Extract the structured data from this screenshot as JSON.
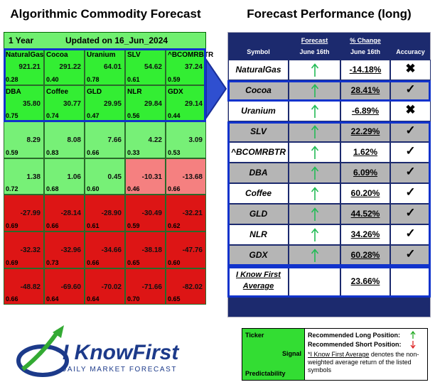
{
  "left": {
    "title": "Algorithmic Commodity Forecast",
    "period": "1 Year",
    "updated": "Updated on 16_Jun_2024",
    "rows": [
      [
        {
          "ticker": "NaturalGas",
          "signal": "921.21",
          "predictability": "0.28",
          "color": "#33ee33"
        },
        {
          "ticker": "Cocoa",
          "signal": "291.22",
          "predictability": "0.40",
          "color": "#33ee33"
        },
        {
          "ticker": "Uranium",
          "signal": "64.01",
          "predictability": "0.78",
          "color": "#33ee33"
        },
        {
          "ticker": "SLV",
          "signal": "54.62",
          "predictability": "0.61",
          "color": "#33ee33"
        },
        {
          "ticker": "^BCOMRBTR",
          "signal": "37.24",
          "predictability": "0.59",
          "color": "#33ee33"
        }
      ],
      [
        {
          "ticker": "DBA",
          "signal": "35.80",
          "predictability": "0.75",
          "color": "#33ee33"
        },
        {
          "ticker": "Coffee",
          "signal": "30.77",
          "predictability": "0.74",
          "color": "#33ee33"
        },
        {
          "ticker": "GLD",
          "signal": "29.95",
          "predictability": "0.47",
          "color": "#33ee33"
        },
        {
          "ticker": "NLR",
          "signal": "29.84",
          "predictability": "0.56",
          "color": "#33ee33"
        },
        {
          "ticker": "GDX",
          "signal": "29.14",
          "predictability": "0.44",
          "color": "#33ee33"
        }
      ],
      [
        {
          "signal": "8.29",
          "predictability": "0.59",
          "color": "#77f077"
        },
        {
          "signal": "8.08",
          "predictability": "0.83",
          "color": "#77f077"
        },
        {
          "signal": "7.66",
          "predictability": "0.66",
          "color": "#77f077"
        },
        {
          "signal": "4.22",
          "predictability": "0.33",
          "color": "#77f077"
        },
        {
          "signal": "3.09",
          "predictability": "0.53",
          "color": "#77f077"
        }
      ],
      [
        {
          "signal": "1.38",
          "predictability": "0.72",
          "color": "#77f077"
        },
        {
          "signal": "1.06",
          "predictability": "0.68",
          "color": "#77f077"
        },
        {
          "signal": "0.45",
          "predictability": "0.60",
          "color": "#77f077"
        },
        {
          "signal": "-10.31",
          "predictability": "0.46",
          "color": "#f58080"
        },
        {
          "signal": "-13.68",
          "predictability": "0.66",
          "color": "#f58080"
        }
      ],
      [
        {
          "signal": "-27.99",
          "predictability": "0.69",
          "color": "#dd1515"
        },
        {
          "signal": "-28.14",
          "predictability": "0.66",
          "color": "#dd1515"
        },
        {
          "signal": "-28.90",
          "predictability": "0.61",
          "color": "#dd1515"
        },
        {
          "signal": "-30.49",
          "predictability": "0.59",
          "color": "#dd1515"
        },
        {
          "signal": "-32.21",
          "predictability": "0.62",
          "color": "#dd1515"
        }
      ],
      [
        {
          "signal": "-32.32",
          "predictability": "0.69",
          "color": "#dd1515"
        },
        {
          "signal": "-32.96",
          "predictability": "0.73",
          "color": "#dd1515"
        },
        {
          "signal": "-34.66",
          "predictability": "0.66",
          "color": "#dd1515"
        },
        {
          "signal": "-38.18",
          "predictability": "0.65",
          "color": "#dd1515"
        },
        {
          "signal": "-47.76",
          "predictability": "0.60",
          "color": "#dd1515"
        }
      ],
      [
        {
          "signal": "-48.82",
          "predictability": "0.66",
          "color": "#dd1515"
        },
        {
          "signal": "-69.60",
          "predictability": "0.64",
          "color": "#dd1515"
        },
        {
          "signal": "-70.02",
          "predictability": "0.64",
          "color": "#dd1515"
        },
        {
          "signal": "-71.66",
          "predictability": "0.70",
          "color": "#dd1515"
        },
        {
          "signal": "-82.02",
          "predictability": "0.65",
          "color": "#dd1515"
        }
      ]
    ]
  },
  "right": {
    "title": "Forecast Performance (long)",
    "header": {
      "symbol": "Symbol",
      "forecast": [
        "Forecast",
        "June 16th"
      ],
      "change": [
        "% Change",
        "June 16th"
      ],
      "accuracy": "Accuracy"
    },
    "rows": [
      {
        "symbol": "NaturalGas",
        "change": "-14.18%",
        "accuracy": "✖"
      },
      {
        "symbol": "Cocoa",
        "change": "28.41%",
        "accuracy": "✓"
      },
      {
        "symbol": "Uranium",
        "change": "-6.89%",
        "accuracy": "✖"
      },
      {
        "symbol": "SLV",
        "change": "22.29%",
        "accuracy": "✓"
      },
      {
        "symbol": "^BCOMRBTR",
        "change": "1.62%",
        "accuracy": "✓"
      },
      {
        "symbol": "DBA",
        "change": "6.09%",
        "accuracy": "✓"
      },
      {
        "symbol": "Coffee",
        "change": "60.20%",
        "accuracy": "✓"
      },
      {
        "symbol": "GLD",
        "change": "44.52%",
        "accuracy": "✓"
      },
      {
        "symbol": "NLR",
        "change": "34.26%",
        "accuracy": "✓"
      },
      {
        "symbol": "GDX",
        "change": "60.28%",
        "accuracy": "✓"
      }
    ],
    "average": {
      "label": [
        "I Know First",
        "Average"
      ],
      "change": "23.66%"
    }
  },
  "legend": {
    "ticker": "Ticker",
    "signal": "Signal",
    "predictability": "Predictability",
    "long": "Recommended Long Position:",
    "short": "Recommended Short Position:",
    "note_link": "*I Know First Average",
    "note": "denotes the non-weighted average return of the listed symbols"
  },
  "logo": {
    "name": "I KnowFirst",
    "tagline": "DAILY MARKET FORECAST"
  }
}
